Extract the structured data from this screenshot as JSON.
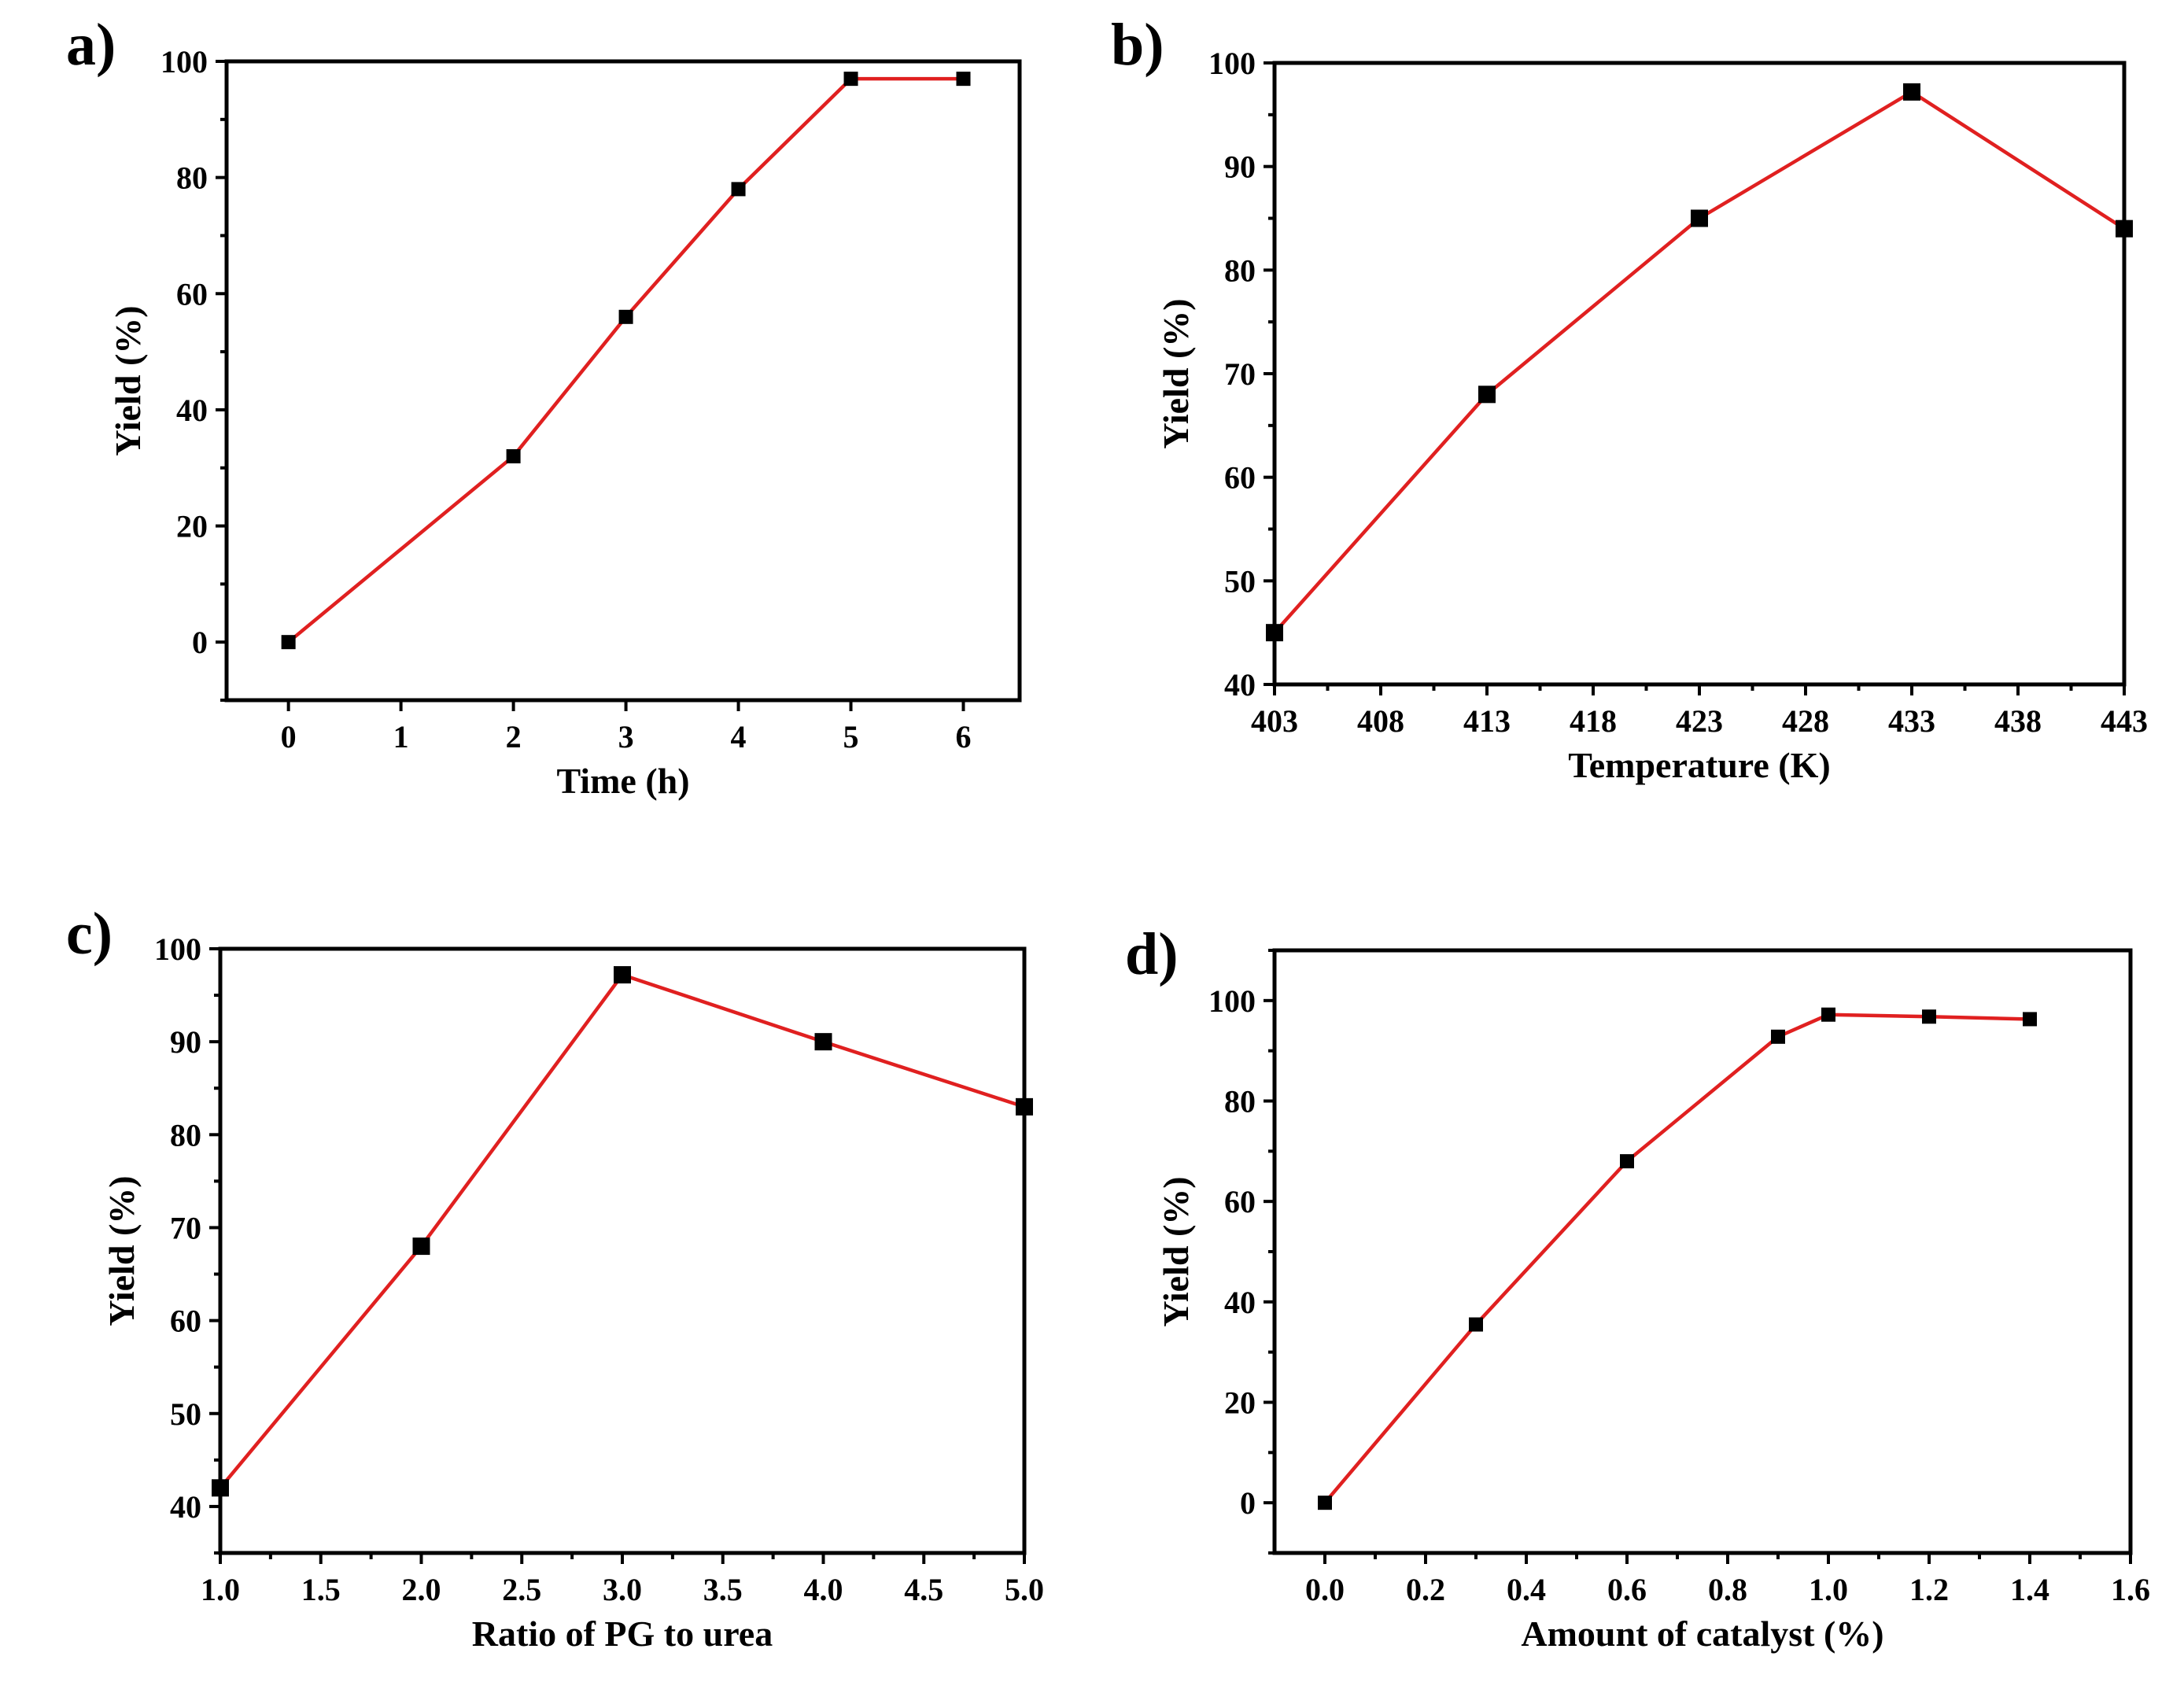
{
  "chart_data": [
    {
      "panel": "a)",
      "type": "line",
      "xlabel": "Time (h)",
      "ylabel": "Yield (%)",
      "xlim": [
        -0.55,
        6.5
      ],
      "ylim": [
        -10,
        100
      ],
      "xticks": [
        0,
        1,
        2,
        3,
        4,
        5,
        6
      ],
      "xtick_labels": [
        "0",
        "1",
        "2",
        "3",
        "4",
        "5",
        "6"
      ],
      "yticks": [
        0,
        20,
        40,
        60,
        80,
        100
      ],
      "ytick_labels": [
        "0",
        "20",
        "40",
        "60",
        "80",
        "100"
      ],
      "x": [
        0,
        2,
        3,
        4,
        5,
        6
      ],
      "y": [
        0,
        32,
        56,
        78,
        97,
        97
      ],
      "line_color": "#e02020",
      "marker_color": "#000000"
    },
    {
      "panel": "b)",
      "type": "line",
      "xlabel": "Temperature (K)",
      "ylabel": "Yield (%)",
      "xlim": [
        403,
        443
      ],
      "ylim": [
        40,
        100
      ],
      "xticks": [
        403,
        408,
        413,
        418,
        423,
        428,
        433,
        438,
        443
      ],
      "xtick_labels": [
        "403",
        "408",
        "413",
        "418",
        "423",
        "428",
        "433",
        "438",
        "443"
      ],
      "yticks": [
        40,
        50,
        60,
        70,
        80,
        90,
        100
      ],
      "ytick_labels": [
        "40",
        "50",
        "60",
        "70",
        "80",
        "90",
        "100"
      ],
      "x": [
        403,
        413,
        423,
        433,
        443
      ],
      "y": [
        45,
        68,
        85,
        97.2,
        84
      ],
      "line_color": "#e02020",
      "marker_color": "#000000"
    },
    {
      "panel": "c)",
      "type": "line",
      "xlabel": "Ratio of PG to urea",
      "ylabel": "Yield (%)",
      "xlim": [
        1.0,
        5.0
      ],
      "ylim": [
        35,
        100
      ],
      "xticks": [
        1.0,
        1.5,
        2.0,
        2.5,
        3.0,
        3.5,
        4.0,
        4.5,
        5.0
      ],
      "xtick_labels": [
        "1.0",
        "1.5",
        "2.0",
        "2.5",
        "3.0",
        "3.5",
        "4.0",
        "4.5",
        "5.0"
      ],
      "yticks": [
        40,
        50,
        60,
        70,
        80,
        90,
        100
      ],
      "ytick_labels": [
        "40",
        "50",
        "60",
        "70",
        "80",
        "90",
        "100"
      ],
      "x": [
        1.0,
        2.0,
        3.0,
        4.0,
        5.0
      ],
      "y": [
        42,
        68,
        97.2,
        90,
        83
      ],
      "line_color": "#e02020",
      "marker_color": "#000000"
    },
    {
      "panel": "d)",
      "type": "line",
      "xlabel": "Amount of catalyst (%)",
      "ylabel": "Yield (%)",
      "xlim": [
        -0.1,
        1.6
      ],
      "ylim": [
        -10,
        110
      ],
      "xticks": [
        0.0,
        0.2,
        0.4,
        0.6,
        0.8,
        1.0,
        1.2,
        1.4,
        1.6
      ],
      "xtick_labels": [
        "0.0",
        "0.2",
        "0.4",
        "0.6",
        "0.8",
        "1.0",
        "1.2",
        "1.4",
        "1.6"
      ],
      "yticks": [
        0,
        20,
        40,
        60,
        80,
        100
      ],
      "ytick_labels": [
        "0",
        "20",
        "40",
        "60",
        "80",
        "100"
      ],
      "x": [
        0.0,
        0.3,
        0.6,
        0.9,
        1.0,
        1.2,
        1.4
      ],
      "y": [
        0,
        35.5,
        68,
        92.8,
        97.2,
        96.8,
        96.3
      ],
      "line_color": "#e02020",
      "marker_color": "#000000"
    }
  ]
}
